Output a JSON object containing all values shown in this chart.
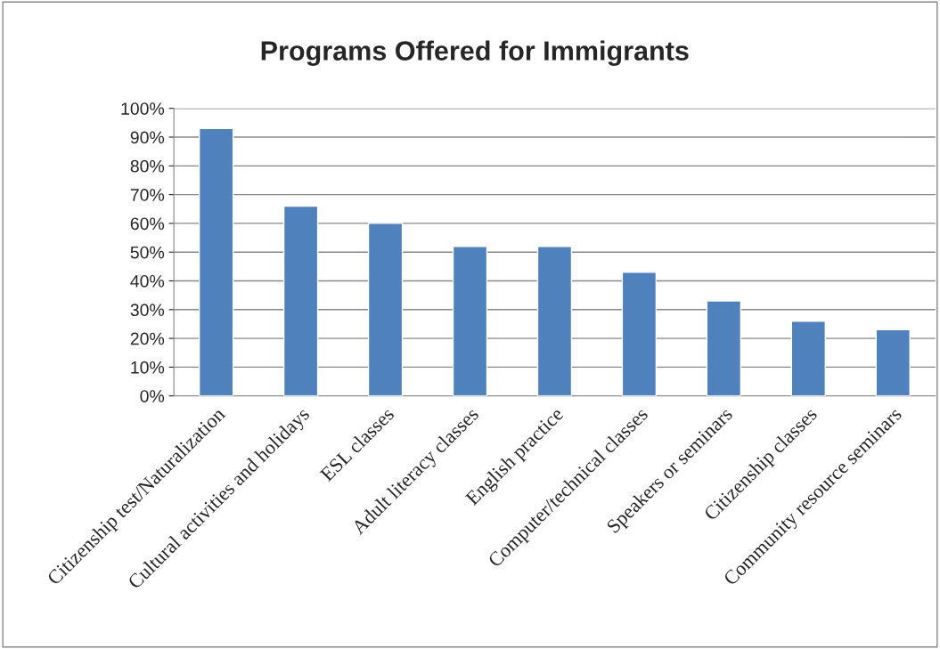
{
  "chart_data": {
    "type": "bar",
    "title": "Programs Offered for Immigrants",
    "categories": [
      "Citizenship test/Naturalization",
      "Cultural activities and holidays",
      "ESL classes",
      "Adult literacy classes",
      "English practice",
      "Computer/technical classes",
      "Speakers or seminars",
      "Citizenship classes",
      "Community resource seminars"
    ],
    "values": [
      93,
      66,
      60,
      52,
      52,
      43,
      33,
      26,
      23
    ],
    "color": "#4f81bd",
    "ylim": [
      0,
      100
    ],
    "yticks": [
      {
        "value": 0,
        "label": "0%"
      },
      {
        "value": 10,
        "label": "10%"
      },
      {
        "value": 20,
        "label": "20%"
      },
      {
        "value": 30,
        "label": "30%"
      },
      {
        "value": 40,
        "label": "40%"
      },
      {
        "value": 50,
        "label": "50%"
      },
      {
        "value": 60,
        "label": "60%"
      },
      {
        "value": 70,
        "label": "70%"
      },
      {
        "value": 80,
        "label": "80%"
      },
      {
        "value": 90,
        "label": "90%"
      },
      {
        "value": 100,
        "label": "100%"
      }
    ],
    "grid": "y"
  }
}
